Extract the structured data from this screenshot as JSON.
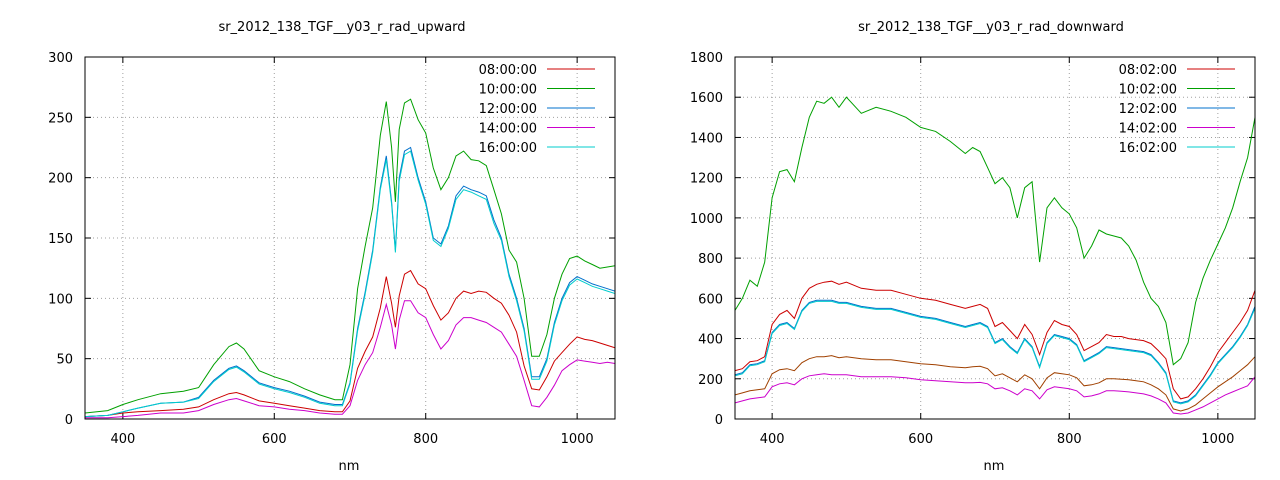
{
  "chart_data": [
    {
      "type": "line",
      "title": "sr_2012_138_TGF__y03_r_rad_upward",
      "xlabel": "nm",
      "ylabel": "",
      "xlim": [
        350,
        1050
      ],
      "ylim": [
        0,
        300
      ],
      "xticks": [
        400,
        600,
        800,
        1000
      ],
      "yticks": [
        0,
        50,
        100,
        150,
        200,
        250,
        300
      ],
      "grid": true,
      "legend": "top-right",
      "x": [
        350,
        380,
        400,
        420,
        450,
        480,
        500,
        520,
        540,
        550,
        560,
        580,
        600,
        620,
        640,
        660,
        680,
        690,
        700,
        710,
        720,
        730,
        740,
        748,
        755,
        760,
        765,
        772,
        780,
        790,
        800,
        810,
        820,
        830,
        840,
        850,
        860,
        870,
        880,
        890,
        900,
        910,
        920,
        930,
        940,
        950,
        960,
        970,
        980,
        990,
        1000,
        1010,
        1020,
        1030,
        1040,
        1050
      ],
      "series": [
        {
          "name": "08:00:00",
          "color": "#cc0000",
          "values": [
            2,
            3,
            5,
            6,
            7,
            8,
            10,
            16,
            21,
            22,
            20,
            15,
            13,
            11,
            9,
            7,
            6,
            6,
            15,
            42,
            56,
            68,
            92,
            118,
            96,
            76,
            102,
            120,
            123,
            112,
            108,
            94,
            82,
            88,
            100,
            106,
            104,
            106,
            105,
            100,
            96,
            86,
            72,
            44,
            25,
            24,
            35,
            48,
            55,
            62,
            68,
            66,
            65,
            63,
            61,
            59
          ]
        },
        {
          "name": "10:00:00",
          "color": "#00a000",
          "values": [
            5,
            7,
            12,
            16,
            21,
            23,
            26,
            45,
            60,
            63,
            58,
            40,
            35,
            31,
            25,
            20,
            16,
            16,
            45,
            108,
            143,
            175,
            235,
            263,
            225,
            180,
            240,
            262,
            265,
            248,
            237,
            208,
            190,
            200,
            218,
            222,
            215,
            214,
            210,
            190,
            170,
            140,
            130,
            100,
            52,
            52,
            70,
            100,
            120,
            133,
            135,
            131,
            128,
            125,
            126,
            127
          ]
        },
        {
          "name": "12:00:00",
          "color": "#0070cc",
          "values": [
            2,
            3,
            6,
            9,
            13,
            14,
            18,
            32,
            42,
            44,
            40,
            30,
            26,
            23,
            19,
            14,
            12,
            12,
            30,
            75,
            105,
            140,
            192,
            218,
            180,
            140,
            200,
            222,
            225,
            200,
            180,
            150,
            145,
            160,
            185,
            193,
            190,
            188,
            185,
            165,
            150,
            120,
            100,
            75,
            35,
            35,
            50,
            80,
            100,
            113,
            118,
            115,
            112,
            110,
            108,
            106
          ]
        },
        {
          "name": "14:00:00",
          "color": "#cc00cc",
          "values": [
            1,
            1,
            2,
            3,
            5,
            5,
            7,
            12,
            16,
            17,
            15,
            11,
            10,
            8,
            7,
            5,
            4,
            4,
            11,
            32,
            45,
            55,
            76,
            95,
            78,
            58,
            82,
            98,
            98,
            88,
            84,
            70,
            58,
            65,
            78,
            84,
            84,
            82,
            80,
            76,
            72,
            62,
            52,
            32,
            11,
            10,
            18,
            28,
            40,
            45,
            49,
            48,
            47,
            46,
            47,
            46
          ]
        },
        {
          "name": "16:00:00",
          "color": "#00cccc",
          "values": [
            2,
            3,
            6,
            9,
            13,
            14,
            17,
            31,
            41,
            43,
            39,
            29,
            25,
            22,
            18,
            13,
            11,
            11,
            29,
            73,
            103,
            138,
            190,
            215,
            178,
            138,
            197,
            219,
            222,
            198,
            178,
            148,
            143,
            158,
            182,
            190,
            188,
            185,
            182,
            162,
            148,
            118,
            98,
            73,
            33,
            33,
            48,
            78,
            98,
            111,
            116,
            113,
            110,
            108,
            106,
            104
          ]
        }
      ]
    },
    {
      "type": "line",
      "title": "sr_2012_138_TGF__y03_r_rad_downward",
      "xlabel": "nm",
      "ylabel": "",
      "xlim": [
        350,
        1050
      ],
      "ylim": [
        0,
        1800
      ],
      "xticks": [
        400,
        600,
        800,
        1000
      ],
      "yticks": [
        0,
        200,
        400,
        600,
        800,
        1000,
        1200,
        1400,
        1600,
        1800
      ],
      "grid": true,
      "legend": "top-right",
      "x": [
        350,
        360,
        370,
        380,
        390,
        400,
        410,
        420,
        430,
        440,
        450,
        460,
        470,
        480,
        490,
        500,
        520,
        540,
        560,
        580,
        600,
        620,
        640,
        660,
        670,
        680,
        690,
        700,
        710,
        720,
        730,
        740,
        750,
        760,
        770,
        780,
        790,
        800,
        810,
        820,
        830,
        840,
        850,
        860,
        870,
        880,
        890,
        900,
        910,
        920,
        930,
        940,
        950,
        960,
        970,
        980,
        990,
        1000,
        1010,
        1020,
        1030,
        1040,
        1050
      ],
      "series": [
        {
          "name": "08:02:00",
          "color": "#cc0000",
          "values": [
            240,
            250,
            285,
            290,
            310,
            470,
            520,
            540,
            500,
            600,
            650,
            670,
            680,
            685,
            670,
            680,
            650,
            640,
            640,
            620,
            600,
            590,
            570,
            550,
            560,
            570,
            550,
            460,
            480,
            440,
            400,
            470,
            420,
            320,
            430,
            490,
            470,
            460,
            420,
            340,
            360,
            380,
            420,
            410,
            410,
            400,
            395,
            390,
            375,
            340,
            300,
            150,
            100,
            110,
            150,
            200,
            260,
            330,
            380,
            430,
            480,
            540,
            640
          ]
        },
        {
          "name": "10:02:00",
          "color": "#00a000",
          "values": [
            540,
            600,
            690,
            660,
            780,
            1100,
            1230,
            1240,
            1180,
            1350,
            1500,
            1580,
            1570,
            1600,
            1550,
            1600,
            1520,
            1550,
            1530,
            1500,
            1450,
            1430,
            1380,
            1320,
            1350,
            1330,
            1250,
            1170,
            1200,
            1150,
            1000,
            1150,
            1180,
            780,
            1050,
            1100,
            1050,
            1020,
            950,
            800,
            860,
            940,
            920,
            910,
            900,
            860,
            790,
            680,
            600,
            560,
            480,
            270,
            300,
            380,
            580,
            700,
            790,
            870,
            950,
            1050,
            1180,
            1300,
            1500
          ]
        },
        {
          "name": "12:02:00",
          "color": "#0070cc",
          "values": [
            220,
            230,
            270,
            275,
            290,
            430,
            470,
            480,
            450,
            540,
            580,
            590,
            590,
            590,
            580,
            580,
            560,
            550,
            550,
            530,
            510,
            500,
            480,
            460,
            470,
            480,
            460,
            380,
            400,
            360,
            330,
            400,
            360,
            260,
            380,
            420,
            410,
            400,
            370,
            290,
            310,
            330,
            360,
            355,
            350,
            345,
            340,
            335,
            320,
            280,
            230,
            90,
            80,
            90,
            120,
            170,
            220,
            280,
            320,
            360,
            410,
            470,
            560
          ]
        },
        {
          "name": "14:02:00",
          "color": "#cc00cc",
          "values": [
            80,
            90,
            100,
            105,
            110,
            160,
            175,
            180,
            170,
            200,
            215,
            220,
            225,
            220,
            220,
            220,
            210,
            210,
            210,
            205,
            195,
            190,
            185,
            180,
            180,
            182,
            175,
            150,
            155,
            140,
            120,
            150,
            140,
            100,
            145,
            160,
            155,
            150,
            140,
            110,
            115,
            125,
            140,
            140,
            138,
            135,
            130,
            125,
            115,
            100,
            80,
            30,
            25,
            30,
            45,
            60,
            80,
            100,
            120,
            135,
            150,
            165,
            210
          ]
        },
        {
          "name": "16:02:00",
          "color": "#00cccc",
          "values": [
            215,
            225,
            265,
            270,
            285,
            425,
            465,
            475,
            445,
            535,
            575,
            585,
            585,
            585,
            575,
            575,
            555,
            545,
            545,
            525,
            505,
            495,
            475,
            455,
            465,
            475,
            455,
            375,
            395,
            355,
            325,
            395,
            355,
            255,
            375,
            415,
            405,
            395,
            365,
            285,
            305,
            325,
            355,
            350,
            345,
            340,
            335,
            330,
            315,
            275,
            225,
            85,
            75,
            85,
            115,
            165,
            215,
            275,
            315,
            355,
            405,
            465,
            550
          ]
        }
      ],
      "extra_series": [
        {
          "name": "",
          "color": "#a04000",
          "values": [
            120,
            130,
            140,
            145,
            150,
            225,
            245,
            250,
            240,
            280,
            300,
            310,
            310,
            315,
            305,
            310,
            300,
            295,
            295,
            285,
            275,
            270,
            260,
            255,
            260,
            262,
            250,
            215,
            225,
            205,
            185,
            220,
            200,
            150,
            205,
            230,
            225,
            220,
            205,
            165,
            170,
            180,
            200,
            200,
            198,
            195,
            190,
            185,
            170,
            150,
            120,
            50,
            40,
            50,
            70,
            100,
            130,
            160,
            185,
            210,
            240,
            270,
            310
          ]
        }
      ]
    }
  ]
}
